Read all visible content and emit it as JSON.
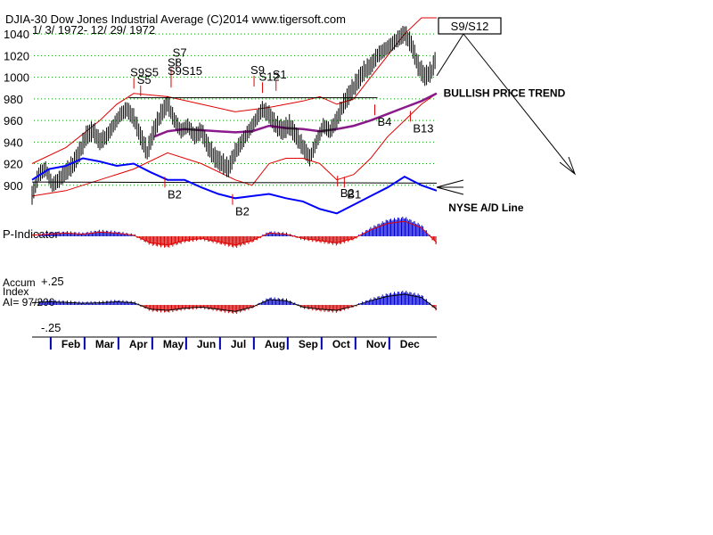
{
  "chart_data": {
    "type": "line",
    "header": {
      "title_line": "DJIA-30  Dow Jones Industrial Average   (C)2014 www.tigersoft.com",
      "date_range": "1/ 3/ 1972- 12/ 29/ 1972"
    },
    "signal_box": "S9/S12",
    "y_ticks": [
      1040,
      1020,
      1000,
      980,
      960,
      940,
      920,
      900
    ],
    "ylim": [
      880,
      1055
    ],
    "x_range": [
      1,
      12.95
    ],
    "months": [
      "Feb",
      "Mar",
      "Apr",
      "May",
      "Jun",
      "Jul",
      "Aug",
      "Sep",
      "Oct",
      "Nov",
      "Dec"
    ],
    "price_series": {
      "t": [
        1,
        1.2,
        1.4,
        1.6,
        1.8,
        2,
        2.2,
        2.4,
        2.6,
        2.8,
        3,
        3.2,
        3.4,
        3.6,
        3.8,
        4,
        4.2,
        4.4,
        4.6,
        4.8,
        5,
        5.2,
        5.4,
        5.6,
        5.8,
        6,
        6.2,
        6.4,
        6.6,
        6.8,
        7,
        7.2,
        7.4,
        7.6,
        7.8,
        8,
        8.2,
        8.4,
        8.6,
        8.8,
        9,
        9.2,
        9.4,
        9.6,
        9.8,
        10,
        10.2,
        10.4,
        10.6,
        10.8,
        11,
        11.2,
        11.4,
        11.6,
        11.8,
        12,
        12.2,
        12.4,
        12.6,
        12.8,
        12.95
      ],
      "close": [
        890,
        910,
        915,
        900,
        905,
        912,
        918,
        930,
        945,
        950,
        940,
        945,
        955,
        965,
        970,
        962,
        945,
        930,
        950,
        965,
        975,
        960,
        950,
        955,
        945,
        950,
        935,
        925,
        920,
        915,
        930,
        940,
        950,
        960,
        970,
        965,
        955,
        950,
        955,
        945,
        935,
        925,
        940,
        955,
        950,
        960,
        975,
        985,
        995,
        1005,
        1010,
        1020,
        1025,
        1030,
        1035,
        1040,
        1030,
        1010,
        1000,
        1005,
        1020
      ]
    },
    "moving_average": {
      "t": [
        4.6,
        5,
        5.5,
        6,
        6.5,
        7,
        7.5,
        8,
        8.5,
        9,
        9.5,
        10,
        10.5,
        11,
        11.5,
        12,
        12.5,
        12.95
      ],
      "values": [
        945,
        950,
        952,
        951,
        950,
        949,
        950,
        955,
        953,
        952,
        950,
        952,
        955,
        960,
        966,
        972,
        978,
        985
      ]
    },
    "band_upper": {
      "t": [
        1,
        2,
        3,
        3.5,
        4,
        5,
        6,
        7,
        8,
        8.5,
        9,
        9.5,
        10,
        10.5,
        11,
        11.5,
        12,
        12.5,
        12.95
      ],
      "values": [
        920,
        935,
        960,
        975,
        985,
        982,
        975,
        968,
        972,
        975,
        978,
        982,
        975,
        980,
        1000,
        1020,
        1040,
        1055,
        1055
      ]
    },
    "band_lower": {
      "t": [
        1,
        2,
        3,
        4,
        5,
        6,
        7,
        7.5,
        8,
        8.5,
        9,
        9.5,
        10,
        10.5,
        11,
        11.5,
        12,
        12.5,
        12.95
      ],
      "values": [
        890,
        895,
        905,
        915,
        930,
        920,
        905,
        900,
        920,
        925,
        925,
        920,
        905,
        910,
        925,
        945,
        960,
        975,
        985
      ]
    },
    "trendlines": [
      {
        "t": [
          3.85,
          11.2
        ],
        "values": [
          981,
          981
        ]
      },
      {
        "t": [
          1,
          12.95
        ],
        "values": [
          903,
          902
        ]
      }
    ],
    "ad_line": {
      "label": "NYSE A/D Line",
      "t": [
        1,
        1.5,
        2,
        2.5,
        3,
        3.5,
        4,
        4.5,
        5,
        5.5,
        6,
        6.5,
        7,
        7.5,
        8,
        8.5,
        9,
        9.5,
        10,
        10.5,
        11,
        11.5,
        12,
        12.5,
        12.95
      ],
      "values": [
        905,
        915,
        918,
        925,
        922,
        918,
        920,
        912,
        905,
        905,
        898,
        892,
        888,
        890,
        892,
        888,
        885,
        878,
        874,
        882,
        890,
        898,
        908,
        900,
        895
      ]
    },
    "p_indicator": {
      "label": "P-Indicator",
      "t": [
        1,
        1.5,
        2,
        2.5,
        3,
        3.5,
        4,
        4.5,
        5,
        5.5,
        6,
        6.5,
        7,
        7.5,
        8,
        8.5,
        9,
        9.5,
        10,
        10.5,
        11,
        11.5,
        12,
        12.5,
        12.95
      ],
      "values": [
        0.05,
        0.1,
        0.15,
        0.1,
        0.2,
        0.15,
        0.05,
        -0.3,
        -0.4,
        -0.2,
        -0.1,
        -0.25,
        -0.4,
        -0.2,
        0.15,
        0.1,
        -0.1,
        -0.2,
        -0.3,
        -0.1,
        0.3,
        0.6,
        0.7,
        0.4,
        -0.3
      ]
    },
    "accum_index": {
      "label_lines": [
        "Accum",
        "Index",
        "AI= 97/200"
      ],
      "upper_label": "+.25",
      "lower_label": "-.25",
      "t": [
        1,
        1.5,
        2,
        2.5,
        3,
        3.5,
        4,
        4.5,
        5,
        5.5,
        6,
        6.5,
        7,
        7.5,
        8,
        8.5,
        9,
        9.5,
        10,
        10.5,
        11,
        11.5,
        12,
        12.5,
        12.95
      ],
      "values": [
        0.1,
        0.15,
        0.12,
        0.08,
        0.1,
        0.15,
        0.1,
        -0.2,
        -0.25,
        -0.15,
        -0.1,
        -0.2,
        -0.3,
        -0.1,
        0.25,
        0.2,
        -0.1,
        -0.2,
        -0.25,
        -0.05,
        0.2,
        0.4,
        0.5,
        0.35,
        -0.2
      ]
    },
    "sell_signals": [
      {
        "label": "S9S5",
        "t": 3.9,
        "y": 1001
      },
      {
        "label": "S5",
        "t": 4.1,
        "y": 994
      },
      {
        "label": "S7",
        "t": 5.15,
        "y": 1019
      },
      {
        "label": "S8",
        "t": 5.0,
        "y": 1010
      },
      {
        "label": "S9S15",
        "t": 5.0,
        "y": 1002
      },
      {
        "label": "S9",
        "t": 7.45,
        "y": 1003
      },
      {
        "label": "S12",
        "t": 7.7,
        "y": 997
      },
      {
        "label": "S1",
        "t": 8.1,
        "y": 999
      }
    ],
    "buy_signals": [
      {
        "label": "B2",
        "t": 5.0,
        "y": 888
      },
      {
        "label": "B2",
        "t": 7.0,
        "y": 872
      },
      {
        "label": "B2",
        "t": 10.1,
        "y": 889
      },
      {
        "label": "B1",
        "t": 10.3,
        "y": 888
      },
      {
        "label": "B4",
        "t": 11.2,
        "y": 955
      },
      {
        "label": "B13",
        "t": 12.25,
        "y": 949
      }
    ],
    "annotations": [
      {
        "text": "BULLISH PRICE TREND",
        "t": 13.15,
        "y": 982
      },
      {
        "text": "NYSE A/D Line",
        "t": 13.3,
        "y": 876
      }
    ],
    "colors": {
      "price": "#000000",
      "band": "#e00000",
      "moving_average": "#8a1a8a",
      "ad_line": "#0000ff",
      "positive": "#0000c8",
      "negative": "#d00000",
      "grid": "#00a000"
    }
  }
}
